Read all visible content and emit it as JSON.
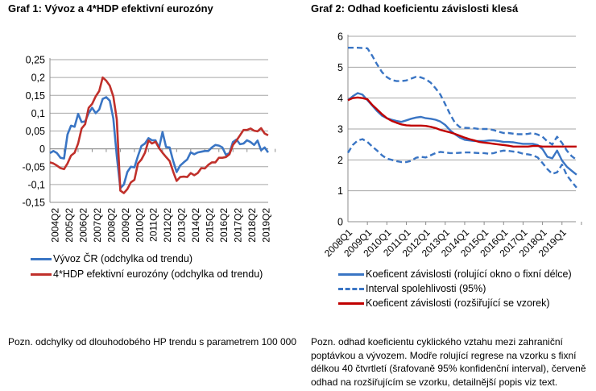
{
  "chart_data": [
    {
      "type": "line",
      "title": "Graf 1: Vývoz a 4*HDP efektivní eurozóny",
      "xlabel": "",
      "ylabel": "",
      "ylim": [
        -0.15,
        0.25
      ],
      "yticks": [
        "-0,15",
        "-0,1",
        "-0,05",
        "0",
        "0,05",
        "0,1",
        "0,15",
        "0,2",
        "0,25"
      ],
      "ytick_values": [
        -0.15,
        -0.1,
        -0.05,
        0,
        0.05,
        0.1,
        0.15,
        0.2,
        0.25
      ],
      "x_start": "2004Q1",
      "x_end": "2019Q3",
      "xtick_labels": [
        "2004Q2",
        "2005Q2",
        "2006Q2",
        "2007Q2",
        "2008Q2",
        "2009Q2",
        "2010Q2",
        "2011Q2",
        "2012Q2",
        "2013Q2",
        "2014Q2",
        "2015Q2",
        "2016Q2",
        "2017Q2",
        "2018Q2",
        "2019Q2"
      ],
      "grid": "horizontal",
      "legend_placement": "bottom",
      "series": [
        {
          "name": "Vývoz ČR (odchylka od trendu)",
          "color": "#3a75c4",
          "style": "solid",
          "values": [
            -0.012,
            -0.006,
            -0.012,
            -0.025,
            -0.027,
            0.04,
            0.065,
            0.062,
            0.098,
            0.075,
            0.077,
            0.1,
            0.115,
            0.1,
            0.11,
            0.14,
            0.145,
            0.135,
            0.085,
            -0.02,
            -0.11,
            -0.1,
            -0.065,
            -0.05,
            -0.052,
            -0.02,
            0.008,
            0.015,
            0.03,
            0.024,
            0.024,
            0.003,
            0.047,
            0.005,
            0.004,
            -0.034,
            -0.065,
            -0.047,
            -0.038,
            -0.03,
            -0.01,
            -0.015,
            -0.01,
            -0.008,
            -0.006,
            -0.006,
            0.004,
            0.011,
            0.009,
            0.004,
            -0.017,
            -0.012,
            0.019,
            0.026,
            0.013,
            0.015,
            0.024,
            0.019,
            0.011,
            0.023,
            -0.004,
            0.004,
            -0.01
          ]
        },
        {
          "name": "4*HDP efektivní eurozóny (odchylka od trendu)",
          "color": "#c0302b",
          "style": "solid",
          "values": [
            -0.038,
            -0.041,
            -0.047,
            -0.054,
            -0.057,
            -0.041,
            -0.019,
            -0.011,
            0.015,
            0.057,
            0.069,
            0.115,
            0.126,
            0.147,
            0.162,
            0.2,
            0.191,
            0.177,
            0.147,
            0.083,
            -0.117,
            -0.124,
            -0.113,
            -0.094,
            -0.087,
            -0.041,
            -0.03,
            -0.011,
            0.023,
            0.015,
            0.02,
            0.002,
            -0.011,
            -0.023,
            -0.034,
            -0.064,
            -0.09,
            -0.079,
            -0.078,
            -0.079,
            -0.068,
            -0.074,
            -0.068,
            -0.054,
            -0.055,
            -0.045,
            -0.038,
            -0.038,
            -0.025,
            -0.025,
            -0.023,
            -0.015,
            0.011,
            0.023,
            0.038,
            0.053,
            0.053,
            0.057,
            0.051,
            0.049,
            0.058,
            0.043,
            0.038
          ]
        }
      ]
    },
    {
      "type": "line",
      "title": "Graf 2: Odhad koeficientu závislosti klesá",
      "xlabel": "",
      "ylabel": "",
      "ylim": [
        0,
        6
      ],
      "yticks": [
        "0",
        "1",
        "2",
        "3",
        "4",
        "5",
        "6"
      ],
      "ytick_values": [
        0,
        1,
        2,
        3,
        4,
        5,
        6
      ],
      "x_start": "2008Q1",
      "x_end": "2019Q4",
      "xtick_labels": [
        "2008Q1",
        "2009Q1",
        "2010Q1",
        "2011Q1",
        "2012Q1",
        "2013Q1",
        "2014Q1",
        "2015Q1",
        "2016Q1",
        "2017Q1",
        "2018Q1",
        "2019Q1"
      ],
      "grid": "horizontal",
      "legend_placement": "bottom",
      "series": [
        {
          "name": "Koeficent závislosti (rolující okno o fixní délce)",
          "color": "#3a75c4",
          "style": "solid",
          "values": [
            3.93,
            4.06,
            4.16,
            4.11,
            3.93,
            3.76,
            3.58,
            3.43,
            3.35,
            3.3,
            3.26,
            3.23,
            3.28,
            3.33,
            3.37,
            3.39,
            3.35,
            3.33,
            3.3,
            3.24,
            3.13,
            2.96,
            2.83,
            2.72,
            2.65,
            2.63,
            2.61,
            2.61,
            2.61,
            2.63,
            2.63,
            2.61,
            2.58,
            2.58,
            2.57,
            2.54,
            2.52,
            2.52,
            2.52,
            2.48,
            2.35,
            2.1,
            2.05,
            2.3,
            1.98,
            1.78,
            1.65,
            1.52
          ]
        },
        {
          "name": "Interval spolehlivosti (95%)",
          "color": "#3a75c4",
          "style": "dashed",
          "values": [
            5.63,
            5.63,
            5.63,
            5.62,
            5.61,
            5.37,
            5.09,
            4.84,
            4.68,
            4.58,
            4.55,
            4.55,
            4.57,
            4.63,
            4.69,
            4.67,
            4.61,
            4.5,
            4.32,
            4.11,
            3.8,
            3.48,
            3.2,
            3.06,
            3.04,
            3.03,
            3.02,
            3.0,
            3.0,
            3.0,
            2.96,
            2.91,
            2.87,
            2.87,
            2.85,
            2.83,
            2.83,
            2.84,
            2.87,
            2.82,
            2.75,
            2.6,
            2.5,
            2.75,
            2.55,
            2.3,
            2.12,
            2.0
          ]
        },
        {
          "name": "",
          "color": "#3a75c4",
          "style": "dashed",
          "values": [
            2.23,
            2.48,
            2.63,
            2.67,
            2.58,
            2.43,
            2.3,
            2.15,
            2.04,
            2.0,
            1.96,
            1.93,
            1.93,
            1.97,
            2.07,
            2.1,
            2.08,
            2.15,
            2.22,
            2.26,
            2.24,
            2.22,
            2.22,
            2.23,
            2.24,
            2.24,
            2.23,
            2.22,
            2.22,
            2.2,
            2.22,
            2.27,
            2.3,
            2.29,
            2.27,
            2.25,
            2.2,
            2.18,
            2.15,
            2.08,
            1.9,
            1.7,
            1.55,
            1.6,
            1.85,
            1.5,
            1.3,
            1.1
          ]
        },
        {
          "name": "Koeficent závislosti (rozšiřující se vzorek)",
          "color": "#c00000",
          "style": "solid",
          "values": [
            3.93,
            4.0,
            4.02,
            4.0,
            3.96,
            3.78,
            3.63,
            3.48,
            3.35,
            3.26,
            3.2,
            3.15,
            3.12,
            3.11,
            3.11,
            3.11,
            3.1,
            3.07,
            3.03,
            2.97,
            2.93,
            2.89,
            2.84,
            2.78,
            2.72,
            2.67,
            2.63,
            2.58,
            2.56,
            2.54,
            2.52,
            2.5,
            2.48,
            2.46,
            2.43,
            2.43,
            2.43,
            2.43,
            2.45,
            2.45,
            2.43,
            2.43,
            2.43,
            2.43,
            2.43,
            2.43,
            2.43,
            2.43
          ]
        }
      ]
    }
  ],
  "notes": {
    "left": "Pozn. odchylky od dlouhodobého HP trendu s parametrem 100 000",
    "right_lines": [
      "Pozn. odhad koeficientu cyklického vztahu mezi zahraniční",
      "poptávkou a vývozem. Modře rolující regrese na vzorku s fixní",
      "délkou 40 čtvrtletí (šrafovaně 95% konfidenční interval), červeně",
      "odhad na rozšiřujícím se vzorku, detailnější popis viz text."
    ]
  }
}
